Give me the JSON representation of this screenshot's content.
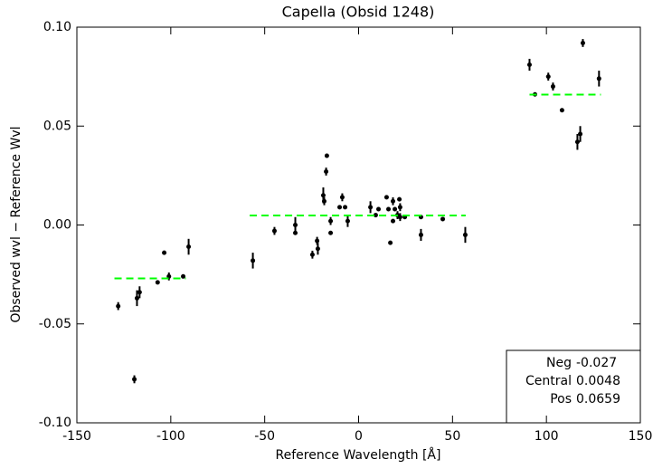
{
  "chart_data": {
    "type": "scatter",
    "title": "Capella (Obsid 1248)",
    "x_label": "Reference Wavelength [Å]",
    "y_label": "Observed wvl − Reference Wvl",
    "xlim": [
      -150,
      150
    ],
    "xticks": [
      -150,
      -100,
      -50,
      0,
      50,
      100,
      150
    ],
    "ylim": [
      -0.1,
      0.1
    ],
    "yticks": [
      {
        "value": -0.1,
        "label": "-0.10"
      },
      {
        "value": -0.05,
        "label": "-0.05"
      },
      {
        "value": 0,
        "label": "0.00"
      },
      {
        "value": 0.05,
        "label": "0.05"
      },
      {
        "value": 0.1,
        "label": "0.10"
      }
    ],
    "x": [
      -128,
      -119.4,
      -118,
      -116.6,
      -107,
      -103.5,
      -101,
      -93.4,
      -90.5,
      -56.3,
      -44.8,
      -33.7,
      -33.7,
      -24.6,
      -22.1,
      -21.7,
      -18.8,
      -18.3,
      -17.3,
      -16.9,
      -14.9,
      -14.9,
      -10.1,
      -8.7,
      -7.2,
      -5.8,
      6.3,
      9.1,
      10.6,
      14.9,
      15.9,
      16.9,
      18.3,
      18.3,
      19.3,
      20.7,
      21.7,
      22.1,
      22.1,
      24.6,
      33.2,
      33.2,
      44.8,
      56.8,
      91,
      93.9,
      101,
      103.5,
      108.3,
      116.5,
      118,
      119.4,
      128
    ],
    "series": [
      {
        "color": "#000000",
        "values": [
          -0.041,
          -0.078,
          -0.037,
          -0.034,
          -0.029,
          -0.014,
          -0.026,
          -0.026,
          -0.011,
          -0.018,
          -0.003,
          0.0,
          -0.004,
          -0.015,
          -0.008,
          -0.012,
          0.015,
          0.012,
          0.027,
          0.035,
          0.002,
          -0.004,
          0.009,
          0.014,
          0.009,
          0.002,
          0.009,
          0.005,
          0.008,
          0.014,
          0.008,
          -0.009,
          0.012,
          0.002,
          0.008,
          0.005,
          0.013,
          0.009,
          0.004,
          0.004,
          0.004,
          -0.005,
          0.003,
          -0.005,
          0.081,
          0.066,
          0.075,
          0.07,
          0.058,
          0.042,
          0.046,
          0.092,
          0.074
        ],
        "errors": [
          0.002,
          0.002,
          0.004,
          0.003,
          0.001,
          0.001,
          0.002,
          0.001,
          0.004,
          0.004,
          0.002,
          0.004,
          0.001,
          0.002,
          0.002,
          0.003,
          0.004,
          0.002,
          0.002,
          0.001,
          0.002,
          0.001,
          0.001,
          0.002,
          0.001,
          0.003,
          0.003,
          0.001,
          0.001,
          0.001,
          0.001,
          0.001,
          0.002,
          0.001,
          0.001,
          0.002,
          0.001,
          0.002,
          0.002,
          0.001,
          0.001,
          0.003,
          0.001,
          0.004,
          0.003,
          0.001,
          0.002,
          0.002,
          0.001,
          0.004,
          0.004,
          0.002,
          0.004
        ]
      }
    ],
    "fits": [
      {
        "name": "Neg",
        "value": -0.027,
        "xrange": [
          -130,
          -92
        ]
      },
      {
        "name": "Central",
        "value": 0.0048,
        "xrange": [
          -58,
          57
        ]
      },
      {
        "name": "Pos",
        "value": 0.0659,
        "xrange": [
          91,
          129
        ]
      }
    ],
    "fit_color": "#00ff00"
  }
}
